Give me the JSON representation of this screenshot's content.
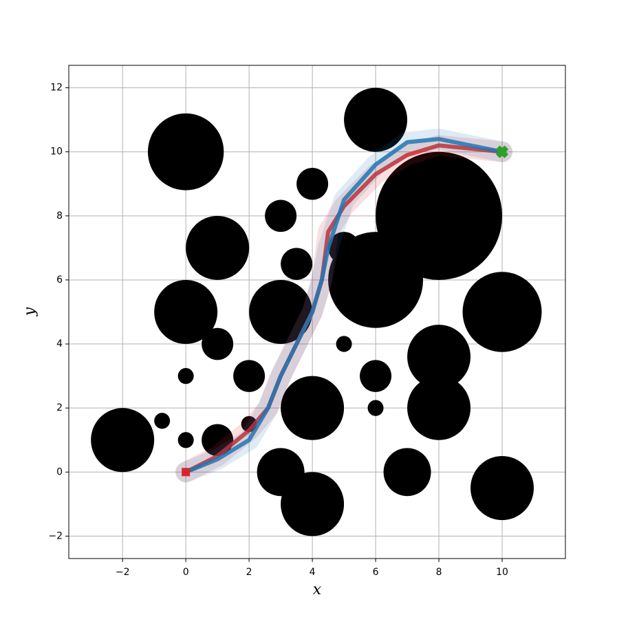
{
  "chart_data": {
    "type": "line",
    "x_label": "x",
    "y_label": "y",
    "xlim": [
      -3.7,
      12
    ],
    "ylim": [
      -2.7,
      12.7
    ],
    "xticks": [
      {
        "value": -2,
        "label": "−2"
      },
      0,
      2,
      4,
      6,
      8,
      10
    ],
    "yticks": [
      {
        "value": -2,
        "label": "−2"
      },
      0,
      2,
      4,
      6,
      8,
      10,
      12
    ],
    "grid": true,
    "obstacle_color": "#000000",
    "obstacles": [
      {
        "x": 0,
        "y": 10,
        "r": 1.2
      },
      {
        "x": 1,
        "y": 7,
        "r": 1.0
      },
      {
        "x": 0,
        "y": 5,
        "r": 1.0
      },
      {
        "x": 1,
        "y": 4,
        "r": 0.5
      },
      {
        "x": 0,
        "y": 3,
        "r": 0.25
      },
      {
        "x": -0.75,
        "y": 1.6,
        "r": 0.25
      },
      {
        "x": 0,
        "y": 1,
        "r": 0.25
      },
      {
        "x": -2,
        "y": 1,
        "r": 1.0
      },
      {
        "x": 1,
        "y": 1,
        "r": 0.5
      },
      {
        "x": 2,
        "y": 3,
        "r": 0.5
      },
      {
        "x": 2,
        "y": 1.5,
        "r": 0.25
      },
      {
        "x": 3,
        "y": 5,
        "r": 1.0
      },
      {
        "x": 3,
        "y": 8,
        "r": 0.5
      },
      {
        "x": 3.5,
        "y": 6.5,
        "r": 0.5
      },
      {
        "x": 4,
        "y": 9,
        "r": 0.5
      },
      {
        "x": 5,
        "y": 7,
        "r": 0.5
      },
      {
        "x": 6,
        "y": 6,
        "r": 1.5
      },
      {
        "x": 8,
        "y": 8,
        "r": 2.0
      },
      {
        "x": 6,
        "y": 11,
        "r": 1.0
      },
      {
        "x": 5,
        "y": 4,
        "r": 0.25
      },
      {
        "x": 6,
        "y": 3,
        "r": 0.5
      },
      {
        "x": 6,
        "y": 2,
        "r": 0.25
      },
      {
        "x": 4,
        "y": 2,
        "r": 1.0
      },
      {
        "x": 3,
        "y": 0,
        "r": 0.75
      },
      {
        "x": 4,
        "y": -1,
        "r": 1.0
      },
      {
        "x": 7,
        "y": 0,
        "r": 0.75
      },
      {
        "x": 8,
        "y": 3.6,
        "r": 1.0
      },
      {
        "x": 8,
        "y": 2,
        "r": 1.0
      },
      {
        "x": 10,
        "y": 5,
        "r": 1.25
      },
      {
        "x": 10,
        "y": -0.5,
        "r": 1.0
      }
    ],
    "series": [
      {
        "color": "#d62728",
        "x": [
          0,
          1,
          2,
          2.6,
          3,
          3.5,
          4,
          4.3,
          4.5,
          5,
          6,
          7,
          8,
          9,
          10
        ],
        "values": [
          0,
          0.5,
          1.3,
          2,
          3,
          4,
          5,
          6,
          7.5,
          8.3,
          9.3,
          9.9,
          10.2,
          10.1,
          10
        ]
      },
      {
        "color": "#1f77b4",
        "x": [
          0,
          1,
          2,
          2.6,
          3,
          3.5,
          4,
          4.3,
          4.5,
          5,
          6,
          7,
          8,
          9,
          10
        ],
        "values": [
          0,
          0.4,
          1,
          2,
          3,
          4,
          5,
          6,
          7,
          8.5,
          9.6,
          10.3,
          10.4,
          10.2,
          10
        ]
      }
    ],
    "markers": [
      {
        "x": 0,
        "y": 0,
        "color": "#d62728",
        "shape": "square"
      },
      {
        "x": 10,
        "y": 10,
        "color": "#2ca02c",
        "shape": "cross"
      }
    ]
  }
}
